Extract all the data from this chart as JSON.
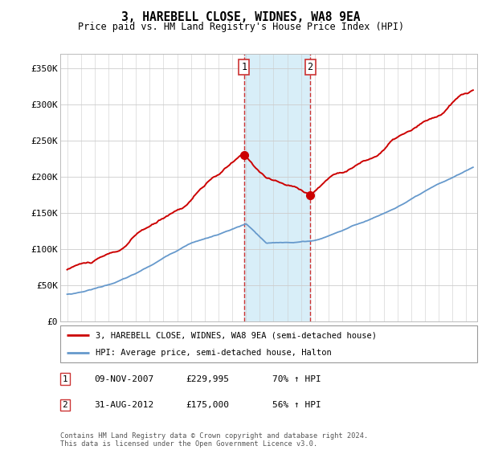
{
  "title": "3, HAREBELL CLOSE, WIDNES, WA8 9EA",
  "subtitle": "Price paid vs. HM Land Registry's House Price Index (HPI)",
  "legend_line1": "3, HAREBELL CLOSE, WIDNES, WA8 9EA (semi-detached house)",
  "legend_line2": "HPI: Average price, semi-detached house, Halton",
  "footer": "Contains HM Land Registry data © Crown copyright and database right 2024.\nThis data is licensed under the Open Government Licence v3.0.",
  "transaction1_date": "09-NOV-2007",
  "transaction1_price": "£229,995",
  "transaction1_hpi": "70% ↑ HPI",
  "transaction2_date": "31-AUG-2012",
  "transaction2_price": "£175,000",
  "transaction2_hpi": "56% ↑ HPI",
  "red_color": "#cc0000",
  "blue_color": "#6699cc",
  "shade_color": "#d8eef8",
  "vline_color": "#cc3333",
  "ylabel_ticks": [
    "£0",
    "£50K",
    "£100K",
    "£150K",
    "£200K",
    "£250K",
    "£300K",
    "£350K"
  ],
  "ytick_values": [
    0,
    50000,
    100000,
    150000,
    200000,
    250000,
    300000,
    350000
  ],
  "ylim": [
    0,
    370000
  ],
  "xlim_start": 1994.5,
  "xlim_end": 2024.8,
  "transaction1_year": 2007.86,
  "transaction2_year": 2012.66
}
